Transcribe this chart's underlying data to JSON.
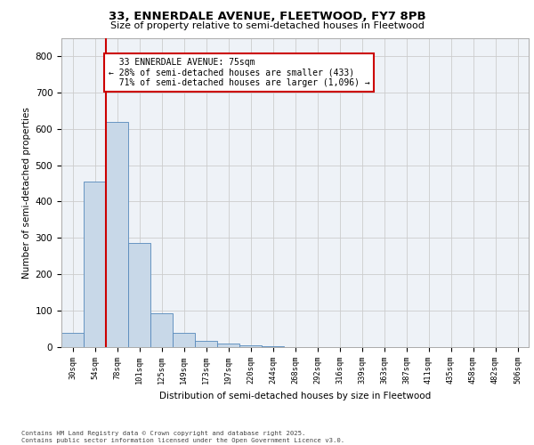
{
  "title": "33, ENNERDALE AVENUE, FLEETWOOD, FY7 8PB",
  "subtitle": "Size of property relative to semi-detached houses in Fleetwood",
  "xlabel": "Distribution of semi-detached houses by size in Fleetwood",
  "ylabel": "Number of semi-detached properties",
  "categories": [
    "30sqm",
    "54sqm",
    "78sqm",
    "101sqm",
    "125sqm",
    "149sqm",
    "173sqm",
    "197sqm",
    "220sqm",
    "244sqm",
    "268sqm",
    "292sqm",
    "316sqm",
    "339sqm",
    "363sqm",
    "387sqm",
    "411sqm",
    "435sqm",
    "458sqm",
    "482sqm",
    "506sqm"
  ],
  "values": [
    40,
    455,
    620,
    285,
    93,
    40,
    18,
    10,
    5,
    2,
    1,
    0,
    0,
    0,
    0,
    0,
    0,
    0,
    0,
    0,
    0
  ],
  "bar_color": "#c8d8e8",
  "bar_edge_color": "#5588bb",
  "marker_label": "33 ENNERDALE AVENUE: 75sqm",
  "smaller_pct": "28%",
  "smaller_count": "433",
  "larger_pct": "71%",
  "larger_count": "1,096",
  "vline_color": "#cc0000",
  "annotation_box_color": "#cc0000",
  "ylim": [
    0,
    850
  ],
  "yticks": [
    0,
    100,
    200,
    300,
    400,
    500,
    600,
    700,
    800
  ],
  "grid_color": "#cccccc",
  "bg_color": "#eef2f7",
  "footnote1": "Contains HM Land Registry data © Crown copyright and database right 2025.",
  "footnote2": "Contains public sector information licensed under the Open Government Licence v3.0."
}
